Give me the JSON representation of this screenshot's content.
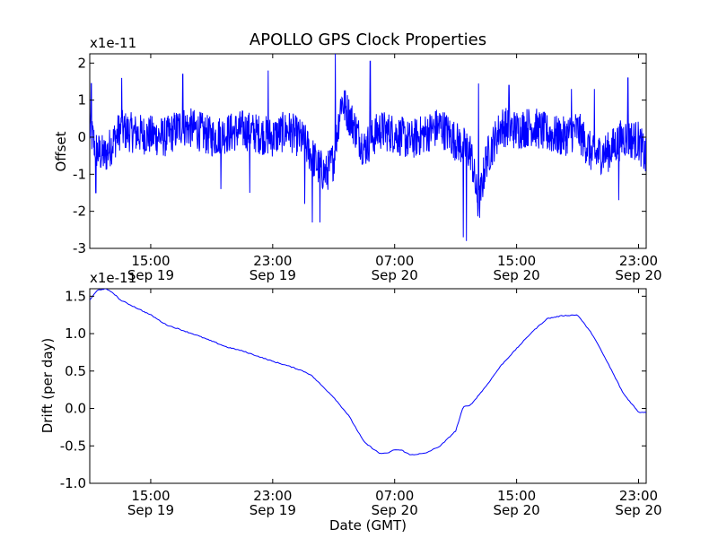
{
  "chart_data": {
    "title": "APOLLO GPS Clock Properties",
    "xlabel": "Date (GMT)",
    "x_unit": "hours since Sep 19 00:00",
    "xlim": [
      11,
      47.5
    ],
    "xticks": [
      {
        "x": 15,
        "time": "15:00",
        "date": "Sep 19"
      },
      {
        "x": 23,
        "time": "23:00",
        "date": "Sep 19"
      },
      {
        "x": 31,
        "time": "07:00",
        "date": "Sep 20"
      },
      {
        "x": 39,
        "time": "15:00",
        "date": "Sep 20"
      },
      {
        "x": 47,
        "time": "23:00",
        "date": "Sep 20"
      }
    ],
    "line_color": "#0000ff",
    "panels": [
      {
        "name": "offset",
        "type": "line",
        "ylabel": "Offset",
        "scale_label": "x1e-11",
        "ylim": [
          -3,
          2.25
        ],
        "yticks": [
          -3,
          -2,
          -1,
          0,
          1,
          2
        ],
        "yticklabels": [
          "-3",
          "-2",
          "-1",
          "0",
          "1",
          "2"
        ],
        "base_trend": {
          "x": [
            11,
            11.5,
            12,
            13,
            14,
            15,
            16,
            17,
            18,
            19,
            20,
            21,
            22,
            23,
            24,
            25,
            26,
            26.5,
            27,
            27.5,
            28,
            29,
            30,
            31,
            32,
            33,
            34,
            35,
            36,
            36.5,
            37,
            38,
            39,
            40,
            41,
            42,
            43,
            44,
            45,
            46,
            47,
            47.5
          ],
          "y": [
            0.2,
            -0.4,
            -0.5,
            0.2,
            0.1,
            0.05,
            0.0,
            0.3,
            0.2,
            0.0,
            0.1,
            0.2,
            0.1,
            0.0,
            0.2,
            -0.1,
            -0.8,
            -1.0,
            -0.6,
            1.0,
            0.6,
            -0.3,
            0.2,
            0.1,
            -0.1,
            0.1,
            0.3,
            -0.1,
            -0.4,
            -1.9,
            -0.6,
            0.3,
            0.2,
            0.3,
            0.1,
            0.0,
            0.2,
            -0.5,
            -0.4,
            0.0,
            -0.1,
            -0.6
          ]
        },
        "spikes": [
          {
            "x": 11.1,
            "y": 1.45
          },
          {
            "x": 11.4,
            "y": -1.5
          },
          {
            "x": 13.1,
            "y": 1.6
          },
          {
            "x": 17.1,
            "y": 1.7
          },
          {
            "x": 21.5,
            "y": -1.5
          },
          {
            "x": 22.7,
            "y": 1.8
          },
          {
            "x": 25.1,
            "y": -1.8
          },
          {
            "x": 25.6,
            "y": -2.3
          },
          {
            "x": 26.1,
            "y": -2.3
          },
          {
            "x": 27.1,
            "y": 2.25
          },
          {
            "x": 29.4,
            "y": 2.05
          },
          {
            "x": 35.5,
            "y": -2.7
          },
          {
            "x": 35.7,
            "y": -2.8
          },
          {
            "x": 36.5,
            "y": 1.45
          },
          {
            "x": 38.5,
            "y": 1.4
          },
          {
            "x": 46.3,
            "y": 1.6
          },
          {
            "x": 45.7,
            "y": -1.7
          },
          {
            "x": 42.6,
            "y": 1.3
          },
          {
            "x": 44.1,
            "y": 1.3
          },
          {
            "x": 19.6,
            "y": -1.4
          }
        ]
      },
      {
        "name": "drift",
        "type": "line",
        "ylabel": "Drift (per day)",
        "scale_label": "x1e-11",
        "ylim": [
          -1.0,
          1.6
        ],
        "yticks": [
          -1.0,
          -0.5,
          0.0,
          0.5,
          1.0,
          1.5
        ],
        "yticklabels": [
          "-1.0",
          "-0.5",
          "0.0",
          "0.5",
          "1.0",
          "1.5"
        ],
        "x": [
          11,
          11.5,
          12,
          12.5,
          13,
          14,
          15,
          16,
          17,
          18,
          19,
          20,
          21,
          22,
          23,
          24,
          25,
          25.5,
          26,
          27,
          28,
          29,
          30,
          30.5,
          31,
          31.5,
          32,
          33,
          34,
          35,
          35.5,
          36,
          37,
          38,
          39,
          40,
          41,
          42,
          43,
          44,
          45,
          46,
          47,
          47.5
        ],
        "y": [
          1.45,
          1.58,
          1.6,
          1.55,
          1.45,
          1.35,
          1.25,
          1.12,
          1.05,
          0.98,
          0.9,
          0.82,
          0.77,
          0.7,
          0.63,
          0.57,
          0.5,
          0.45,
          0.35,
          0.15,
          -0.1,
          -0.45,
          -0.6,
          -0.6,
          -0.55,
          -0.56,
          -0.62,
          -0.6,
          -0.5,
          -0.3,
          0.02,
          0.05,
          0.3,
          0.58,
          0.8,
          1.02,
          1.2,
          1.24,
          1.25,
          0.98,
          0.6,
          0.2,
          -0.05,
          -0.05
        ]
      }
    ]
  }
}
